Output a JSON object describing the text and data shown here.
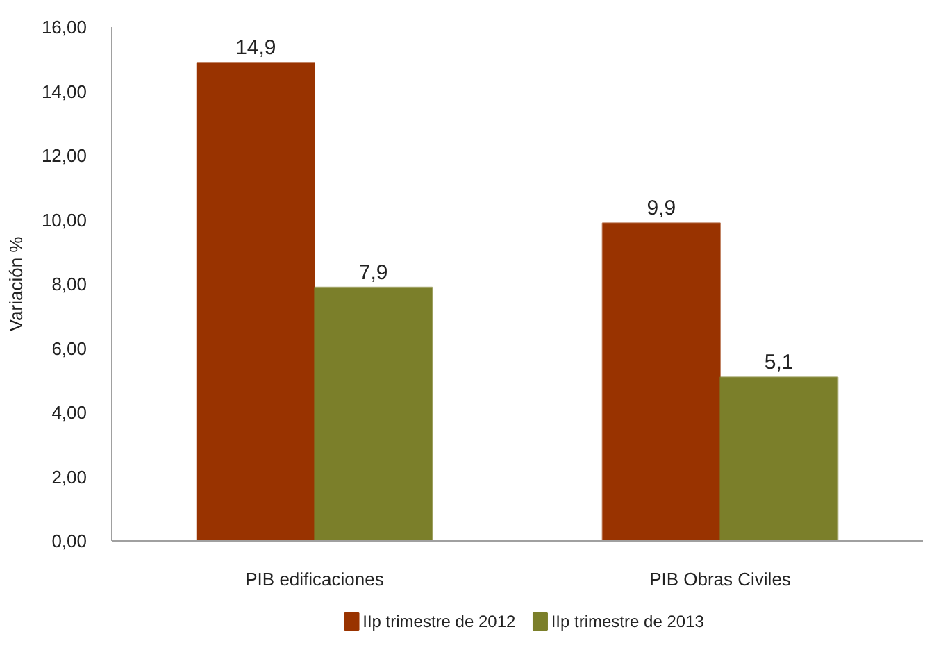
{
  "chart_data": {
    "type": "bar",
    "ylabel": "Variación %",
    "categories": [
      "PIB edificaciones",
      "PIB Obras Civiles"
    ],
    "series": [
      {
        "name": "IIp trimestre de 2012",
        "color": "#993300",
        "values": [
          14.9,
          9.9
        ],
        "value_labels": [
          "14,9",
          "9,9"
        ]
      },
      {
        "name": "IIp trimestre de 2013",
        "color": "#7b7f2a",
        "values": [
          7.9,
          5.1
        ],
        "value_labels": [
          "7,9",
          "5,1"
        ]
      }
    ],
    "ylim": [
      0,
      16
    ],
    "yticks": [
      {
        "value": 0,
        "label": "0,00"
      },
      {
        "value": 2,
        "label": "2,00"
      },
      {
        "value": 4,
        "label": "4,00"
      },
      {
        "value": 6,
        "label": "6,00"
      },
      {
        "value": 8,
        "label": "8,00"
      },
      {
        "value": 10,
        "label": "10,00"
      },
      {
        "value": 12,
        "label": "12,00"
      },
      {
        "value": 14,
        "label": "14,00"
      },
      {
        "value": 16,
        "label": "16,00"
      }
    ],
    "grid": false,
    "legend": "bottom"
  }
}
